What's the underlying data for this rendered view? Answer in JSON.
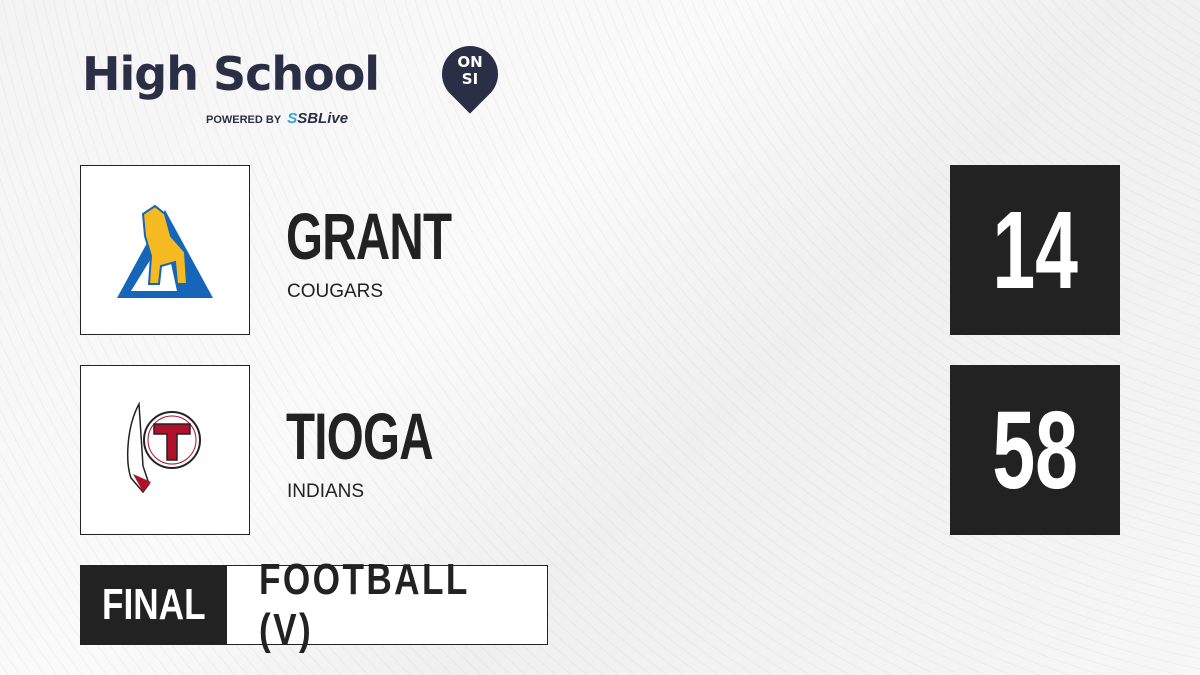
{
  "brand": {
    "title": "High School",
    "badge_line1": "ON",
    "badge_line2": "SI",
    "powered_by": "POWERED BY",
    "partner_prefix": "S",
    "partner": "SBLive"
  },
  "teams": [
    {
      "name": "GRANT",
      "mascot": "COUGARS",
      "score": "14",
      "logo": "cougar-mountain-logo",
      "colors": [
        "#1565b8",
        "#f5b921"
      ]
    },
    {
      "name": "TIOGA",
      "mascot": "INDIANS",
      "score": "58",
      "logo": "t-feather-logo",
      "colors": [
        "#b0102a",
        "#ffffff"
      ]
    }
  ],
  "game": {
    "status": "FINAL",
    "sport": "FOOTBALL (V)"
  }
}
